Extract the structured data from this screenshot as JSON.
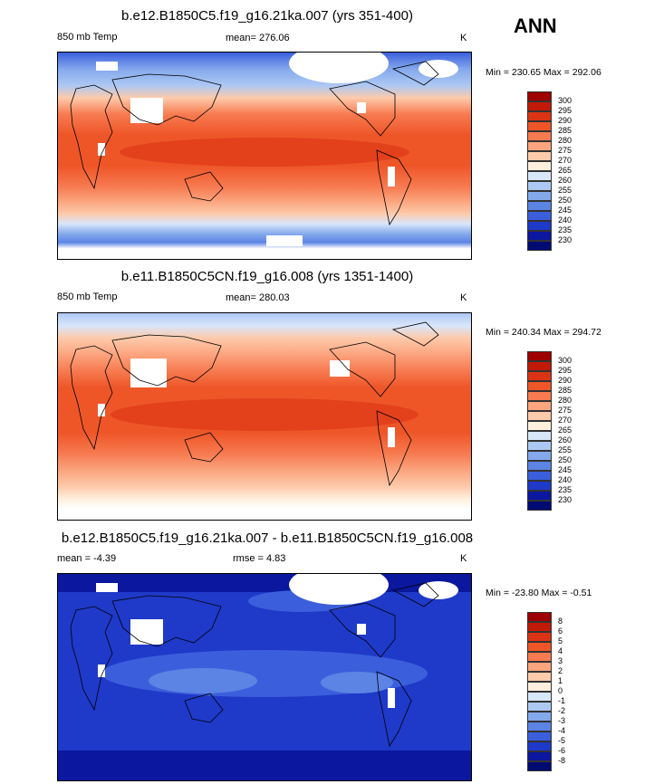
{
  "ann_label": "ANN",
  "panels": [
    {
      "title": "b.e12.B1850C5.f19_g16.21ka.007 (yrs 351-400)",
      "left_label": "850 mb Temp",
      "center_label": "mean= 276.06",
      "units": "K",
      "minmax": "Min = 230.65 Max = 292.06",
      "scheme": "cold",
      "colorbar_labels": [
        "300",
        "295",
        "290",
        "285",
        "280",
        "275",
        "270",
        "265",
        "260",
        "255",
        "250",
        "245",
        "240",
        "235",
        "230"
      ]
    },
    {
      "title": "b.e11.B1850C5CN.f19_g16.008 (yrs 1351-1400)",
      "left_label": "850 mb Temp",
      "center_label": "mean= 280.03",
      "units": "K",
      "minmax": "Min = 240.34 Max = 294.72",
      "scheme": "warm",
      "colorbar_labels": [
        "300",
        "295",
        "290",
        "285",
        "280",
        "275",
        "270",
        "265",
        "260",
        "255",
        "250",
        "245",
        "240",
        "235",
        "230"
      ]
    },
    {
      "title": "b.e12.B1850C5.f19_g16.21ka.007 - b.e11.B1850C5CN.f19_g16.008",
      "left_label": "mean =  -4.39",
      "center_label": "rmse =   4.83",
      "units": "K",
      "minmax": "Min = -23.80 Max =  -0.51",
      "scheme": "diff",
      "colorbar_labels": [
        "8",
        "6",
        "5",
        "4",
        "3",
        "2",
        "1",
        "0",
        "-1",
        "-2",
        "-3",
        "-4",
        "-5",
        "-6",
        "-8"
      ]
    }
  ],
  "colorbar_colors": [
    "#9e0000",
    "#c21a08",
    "#db3414",
    "#ee5628",
    "#f77a50",
    "#fba47e",
    "#fdcaab",
    "#fff0de",
    "#d8e6fa",
    "#adc8f3",
    "#84a8ec",
    "#5c84e4",
    "#3b5fdc",
    "#1f39c9",
    "#0a179e",
    "#000b72"
  ]
}
